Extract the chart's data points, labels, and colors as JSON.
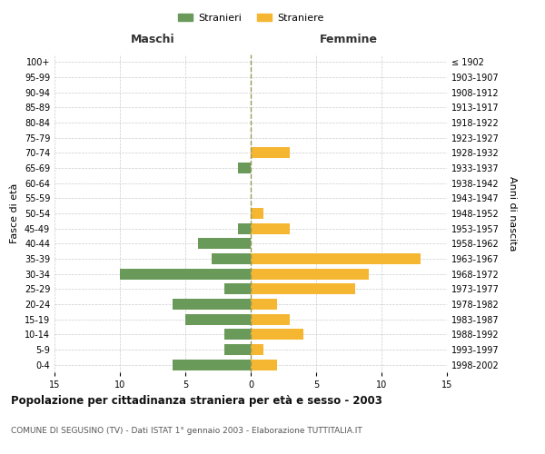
{
  "age_groups": [
    "100+",
    "95-99",
    "90-94",
    "85-89",
    "80-84",
    "75-79",
    "70-74",
    "65-69",
    "60-64",
    "55-59",
    "50-54",
    "45-49",
    "40-44",
    "35-39",
    "30-34",
    "25-29",
    "20-24",
    "15-19",
    "10-14",
    "5-9",
    "0-4"
  ],
  "birth_years": [
    "≤ 1902",
    "1903-1907",
    "1908-1912",
    "1913-1917",
    "1918-1922",
    "1923-1927",
    "1928-1932",
    "1933-1937",
    "1938-1942",
    "1943-1947",
    "1948-1952",
    "1953-1957",
    "1958-1962",
    "1963-1967",
    "1968-1972",
    "1973-1977",
    "1978-1982",
    "1983-1987",
    "1988-1992",
    "1993-1997",
    "1998-2002"
  ],
  "maschi": [
    0,
    0,
    0,
    0,
    0,
    0,
    0,
    1,
    0,
    0,
    0,
    1,
    4,
    3,
    10,
    2,
    6,
    5,
    2,
    2,
    6
  ],
  "femmine": [
    0,
    0,
    0,
    0,
    0,
    0,
    3,
    0,
    0,
    0,
    1,
    3,
    0,
    13,
    9,
    8,
    2,
    3,
    4,
    1,
    2
  ],
  "color_maschi": "#6a9a5a",
  "color_femmine": "#f5b731",
  "title": "Popolazione per cittadinanza straniera per età e sesso - 2003",
  "subtitle": "COMUNE DI SEGUSINO (TV) - Dati ISTAT 1° gennaio 2003 - Elaborazione TUTTITALIA.IT",
  "xlabel_left": "Maschi",
  "xlabel_right": "Femmine",
  "ylabel_left": "Fasce di età",
  "ylabel_right": "Anni di nascita",
  "legend_maschi": "Stranieri",
  "legend_femmine": "Straniere",
  "xlim": 15,
  "background_color": "#ffffff",
  "grid_color": "#cccccc"
}
